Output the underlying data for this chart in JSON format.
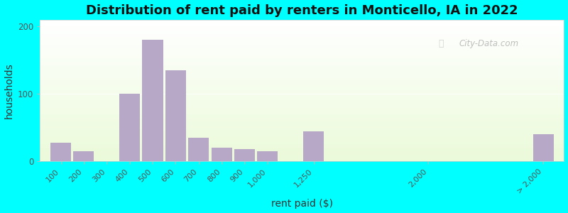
{
  "title": "Distribution of rent paid by renters in Monticello, IA in 2022",
  "xlabel": "rent paid ($)",
  "ylabel": "households",
  "bar_color": "#b8a8c8",
  "background_color": "#00ffff",
  "categories": [
    "100",
    "200",
    "300",
    "400",
    "500",
    "600",
    "700",
    "800",
    "900",
    "1,000",
    "1,250",
    "2,000",
    "> 2,000"
  ],
  "x_positions": [
    0,
    1,
    2,
    3,
    4,
    5,
    6,
    7,
    8,
    9,
    11,
    16,
    21
  ],
  "values": [
    28,
    15,
    0,
    100,
    180,
    135,
    35,
    20,
    18,
    15,
    45,
    0,
    40
  ],
  "ylim": [
    0,
    210
  ],
  "yticks": [
    0,
    100,
    200
  ],
  "bar_width": 0.9,
  "title_fontsize": 13,
  "axis_label_fontsize": 10,
  "tick_fontsize": 8,
  "watermark_text": "City-Data.com"
}
